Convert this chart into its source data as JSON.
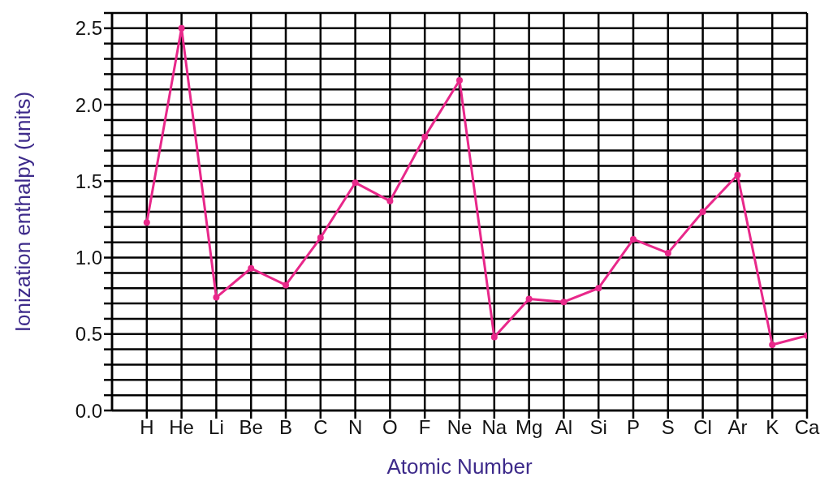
{
  "chart_data": {
    "type": "line",
    "xlabel": "Atomic Number",
    "ylabel": "Ionization enthalpy (units)",
    "categories": [
      "H",
      "He",
      "Li",
      "Be",
      "B",
      "C",
      "N",
      "O",
      "F",
      "Ne",
      "Na",
      "Mg",
      "Al",
      "Si",
      "P",
      "S",
      "Cl",
      "Ar",
      "K",
      "Ca"
    ],
    "series": [
      {
        "color": "#e8288a",
        "values": [
          1.23,
          2.5,
          0.74,
          0.93,
          0.82,
          1.13,
          1.49,
          1.37,
          1.79,
          2.16,
          0.48,
          0.73,
          0.71,
          0.8,
          1.12,
          1.03,
          1.3,
          1.54,
          0.43,
          0.49
        ]
      }
    ],
    "ylim": [
      0,
      2.6
    ],
    "yticks": [
      {
        "value": 0,
        "label": "0.0"
      },
      {
        "value": 0.1,
        "label": null
      },
      {
        "value": 0.2,
        "label": null
      },
      {
        "value": 0.3,
        "label": null
      },
      {
        "value": 0.4,
        "label": null
      },
      {
        "value": 0.5,
        "label": "0.5"
      },
      {
        "value": 0.6,
        "label": null
      },
      {
        "value": 0.7,
        "label": null
      },
      {
        "value": 0.8,
        "label": null
      },
      {
        "value": 0.9,
        "label": null
      },
      {
        "value": 1.0,
        "label": "1.0"
      },
      {
        "value": 1.1,
        "label": null
      },
      {
        "value": 1.2,
        "label": null
      },
      {
        "value": 1.3,
        "label": null
      },
      {
        "value": 1.4,
        "label": null
      },
      {
        "value": 1.5,
        "label": "1.5"
      },
      {
        "value": 1.6,
        "label": null
      },
      {
        "value": 1.7,
        "label": null
      },
      {
        "value": 1.8,
        "label": null
      },
      {
        "value": 1.9,
        "label": null
      },
      {
        "value": 2.0,
        "label": "2.0"
      },
      {
        "value": 2.1,
        "label": null
      },
      {
        "value": 2.2,
        "label": null
      },
      {
        "value": 2.3,
        "label": null
      },
      {
        "value": 2.4,
        "label": null
      },
      {
        "value": 2.5,
        "label": "2.5"
      },
      {
        "value": 2.6,
        "label": null
      }
    ],
    "grid": true,
    "marker": "circle",
    "line_style": "solid"
  }
}
